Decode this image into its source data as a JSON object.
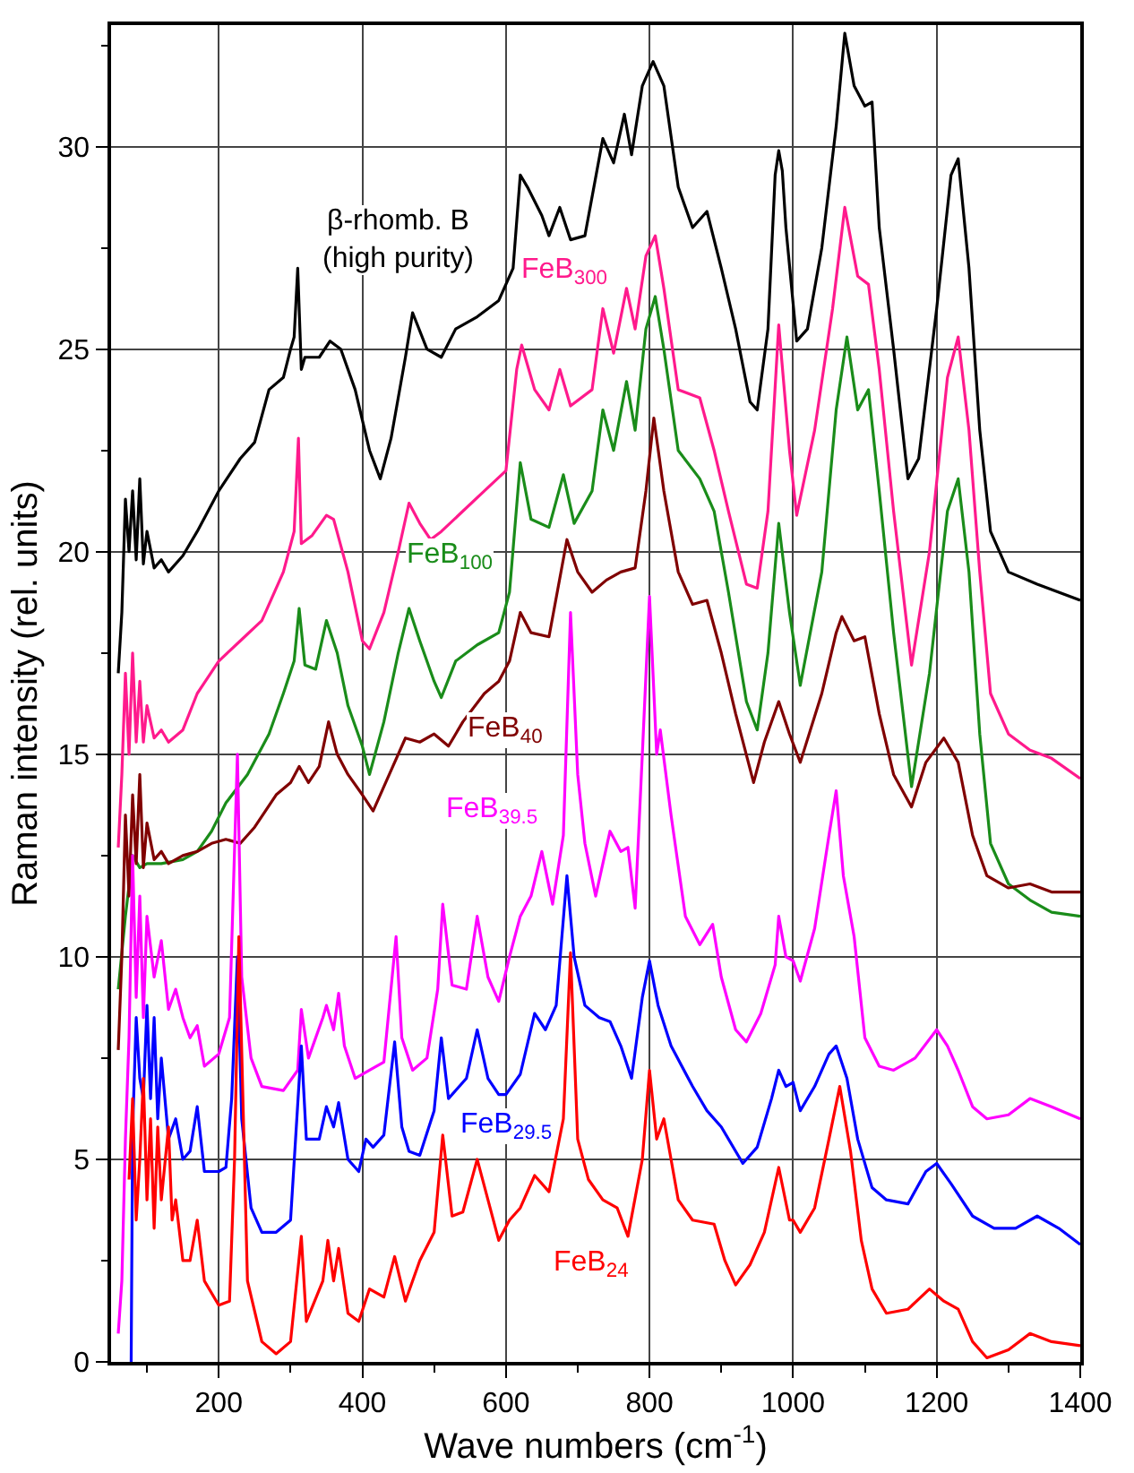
{
  "chart_data": {
    "type": "line",
    "xlabel": "Wave numbers (cm$^{-1}$)",
    "ylabel": "Raman intensity (rel. units)",
    "xlim": [
      50,
      1400
    ],
    "ylim": [
      0,
      33
    ],
    "xticks": [
      200,
      400,
      600,
      800,
      1000,
      1200,
      1400
    ],
    "yticks": [
      0,
      5,
      10,
      15,
      20,
      25,
      30
    ],
    "grid": true,
    "legend": false,
    "marker": "none",
    "line_style": "solid",
    "series": [
      {
        "name": "β-rhomb. B\n(high purity)",
        "color": "#000000",
        "x": [
          60,
          65,
          70,
          75,
          80,
          85,
          90,
          95,
          100,
          110,
          120,
          130,
          150,
          170,
          200,
          230,
          250,
          270,
          290,
          300,
          305,
          310,
          315,
          320,
          340,
          355,
          370,
          390,
          410,
          425,
          440,
          460,
          470,
          490,
          510,
          530,
          560,
          590,
          610,
          620,
          630,
          650,
          660,
          675,
          690,
          710,
          735,
          750,
          765,
          775,
          790,
          805,
          820,
          840,
          860,
          880,
          900,
          920,
          940,
          950,
          965,
          975,
          980,
          985,
          990,
          1005,
          1020,
          1040,
          1060,
          1072,
          1085,
          1100,
          1110,
          1120,
          1140,
          1160,
          1175,
          1200,
          1220,
          1230,
          1245,
          1260,
          1275,
          1300,
          1340,
          1400
        ],
        "values": [
          17,
          18.5,
          21.3,
          20,
          21.5,
          19.8,
          21.8,
          19.7,
          20.5,
          19.6,
          19.8,
          19.5,
          19.9,
          20.5,
          21.5,
          22.3,
          22.7,
          24,
          24.3,
          25,
          25.3,
          27,
          24.5,
          24.8,
          24.8,
          25.2,
          25,
          24,
          22.5,
          21.8,
          22.8,
          24.8,
          25.9,
          25,
          24.8,
          25.5,
          25.8,
          26.2,
          27,
          29.3,
          29,
          28.3,
          27.8,
          28.5,
          27.7,
          27.8,
          30.2,
          29.6,
          30.8,
          29.8,
          31.5,
          32.1,
          31.5,
          29,
          28,
          28.4,
          27,
          25.5,
          23.7,
          23.5,
          25.5,
          29.3,
          29.9,
          29.4,
          28,
          25.2,
          25.5,
          27.5,
          30.5,
          32.8,
          31.5,
          31,
          31.1,
          28,
          25,
          21.8,
          22.3,
          26,
          29.3,
          29.7,
          27,
          23,
          20.5,
          19.5,
          19.2,
          18.8
        ]
      },
      {
        "name": "FeB$_{300}$",
        "color": "#ff1a8c",
        "x": [
          60,
          65,
          70,
          75,
          80,
          85,
          90,
          95,
          100,
          110,
          120,
          130,
          150,
          170,
          200,
          230,
          260,
          290,
          305,
          311,
          315,
          330,
          350,
          360,
          380,
          400,
          410,
          430,
          450,
          465,
          480,
          495,
          510,
          540,
          570,
          600,
          615,
          622,
          640,
          660,
          675,
          690,
          720,
          735,
          750,
          768,
          780,
          795,
          808,
          820,
          840,
          870,
          890,
          910,
          935,
          950,
          965,
          980,
          995,
          1005,
          1030,
          1055,
          1072,
          1090,
          1105,
          1120,
          1140,
          1165,
          1190,
          1215,
          1230,
          1245,
          1260,
          1275,
          1300,
          1330,
          1360,
          1400
        ],
        "values": [
          12.7,
          14.5,
          17,
          15,
          17.5,
          15.3,
          16.8,
          15.3,
          16.2,
          15.4,
          15.6,
          15.3,
          15.6,
          16.5,
          17.3,
          17.8,
          18.3,
          19.5,
          20.5,
          22.8,
          20.2,
          20.4,
          20.9,
          20.8,
          19.5,
          17.8,
          17.6,
          18.5,
          20,
          21.2,
          20.7,
          20.3,
          20.5,
          21,
          21.5,
          22,
          24.5,
          25.1,
          24,
          23.5,
          24.5,
          23.6,
          24,
          26,
          24.9,
          26.5,
          25.5,
          27.3,
          27.8,
          26.5,
          24,
          23.8,
          22.5,
          21,
          19.2,
          19.1,
          21,
          25.6,
          22.5,
          20.9,
          23,
          26,
          28.5,
          26.8,
          26.6,
          24.5,
          21,
          17.2,
          20,
          24.3,
          25.3,
          23,
          19.5,
          16.5,
          15.5,
          15.1,
          14.9,
          14.4
        ]
      },
      {
        "name": "FeB$_{100}$",
        "color": "#1a8c1a",
        "x": [
          60,
          70,
          80,
          90,
          100,
          120,
          150,
          170,
          190,
          210,
          240,
          270,
          290,
          305,
          312,
          320,
          335,
          350,
          365,
          380,
          400,
          410,
          430,
          450,
          465,
          480,
          500,
          510,
          530,
          560,
          590,
          605,
          620,
          635,
          660,
          680,
          695,
          720,
          735,
          750,
          768,
          780,
          795,
          808,
          820,
          840,
          870,
          890,
          910,
          935,
          950,
          965,
          980,
          995,
          1010,
          1040,
          1060,
          1075,
          1090,
          1105,
          1120,
          1140,
          1165,
          1190,
          1215,
          1230,
          1245,
          1260,
          1275,
          1300,
          1330,
          1360,
          1400
        ],
        "values": [
          9.2,
          11,
          12.5,
          12.2,
          12.3,
          12.3,
          12.4,
          12.6,
          13.1,
          13.8,
          14.5,
          15.5,
          16.5,
          17.3,
          18.6,
          17.2,
          17.1,
          18.3,
          17.5,
          16.2,
          15.2,
          14.5,
          15.8,
          17.5,
          18.6,
          17.8,
          16.8,
          16.4,
          17.3,
          17.7,
          18,
          19,
          22.2,
          20.8,
          20.6,
          21.9,
          20.7,
          21.5,
          23.5,
          22.5,
          24.2,
          23,
          25.5,
          26.3,
          25,
          22.5,
          21.8,
          21,
          19,
          16.3,
          15.6,
          17.5,
          20.7,
          18.5,
          16.7,
          19.5,
          23.5,
          25.3,
          23.5,
          24,
          21.5,
          18,
          14.2,
          17,
          21,
          21.8,
          19.5,
          15.5,
          12.8,
          11.8,
          11.4,
          11.1,
          11
        ]
      },
      {
        "name": "FeB$_{40}$",
        "color": "#800000",
        "x": [
          60,
          65,
          70,
          75,
          80,
          85,
          90,
          95,
          100,
          110,
          120,
          130,
          150,
          170,
          190,
          210,
          230,
          250,
          280,
          300,
          312,
          325,
          340,
          353,
          365,
          380,
          400,
          415,
          440,
          460,
          480,
          500,
          520,
          540,
          570,
          590,
          605,
          620,
          635,
          660,
          685,
          700,
          720,
          740,
          760,
          780,
          795,
          806,
          820,
          840,
          860,
          880,
          900,
          920,
          945,
          960,
          980,
          995,
          1010,
          1040,
          1060,
          1068,
          1085,
          1100,
          1120,
          1140,
          1165,
          1185,
          1210,
          1230,
          1250,
          1270,
          1300,
          1330,
          1360,
          1400
        ],
        "values": [
          7.7,
          10,
          13.5,
          11.5,
          14,
          12.3,
          14.5,
          12.2,
          13.3,
          12.4,
          12.6,
          12.3,
          12.5,
          12.6,
          12.8,
          12.9,
          12.8,
          13.2,
          14,
          14.3,
          14.7,
          14.3,
          14.7,
          15.8,
          15,
          14.5,
          14,
          13.6,
          14.6,
          15.4,
          15.3,
          15.5,
          15.2,
          15.8,
          16.5,
          16.8,
          17.3,
          18.5,
          18,
          17.9,
          20.3,
          19.5,
          19,
          19.3,
          19.5,
          19.6,
          21.5,
          23.3,
          21.5,
          19.5,
          18.7,
          18.8,
          17.5,
          16,
          14.3,
          15.3,
          16.3,
          15.5,
          14.8,
          16.5,
          18,
          18.4,
          17.8,
          17.9,
          16,
          14.5,
          13.7,
          14.8,
          15.4,
          14.8,
          13,
          12,
          11.7,
          11.8,
          11.6,
          11.6
        ]
      },
      {
        "name": "FeB$_{39.5}$",
        "color": "#ff00ff",
        "x": [
          60,
          65,
          70,
          75,
          80,
          85,
          90,
          95,
          100,
          110,
          120,
          130,
          140,
          150,
          160,
          170,
          180,
          200,
          215,
          226,
          232,
          245,
          260,
          290,
          310,
          315,
          325,
          345,
          350,
          360,
          367,
          375,
          390,
          410,
          430,
          447,
          455,
          470,
          490,
          505,
          512,
          525,
          545,
          560,
          575,
          590,
          605,
          620,
          635,
          650,
          665,
          680,
          690,
          700,
          710,
          725,
          745,
          760,
          770,
          780,
          790,
          800,
          810,
          815,
          830,
          850,
          870,
          888,
          900,
          920,
          935,
          955,
          975,
          980,
          990,
          1000,
          1010,
          1030,
          1050,
          1060,
          1070,
          1085,
          1100,
          1120,
          1140,
          1170,
          1200,
          1215,
          1230,
          1250,
          1270,
          1300,
          1330,
          1360,
          1400
        ],
        "values": [
          0.7,
          2,
          5.5,
          8,
          12.5,
          9,
          11.5,
          8.5,
          11,
          9.5,
          10.4,
          8.7,
          9.2,
          8.5,
          8,
          8.3,
          7.3,
          7.6,
          8.5,
          15,
          9.5,
          7.5,
          6.8,
          6.7,
          7.2,
          8.7,
          7.5,
          8.5,
          8.8,
          8.2,
          9.1,
          7.8,
          7,
          7.2,
          7.4,
          10.5,
          8,
          7.2,
          7.5,
          9.2,
          11.3,
          9.3,
          9.2,
          11,
          9.5,
          8.9,
          10,
          11,
          11.5,
          12.6,
          11.3,
          13,
          18.5,
          14.5,
          12.8,
          11.5,
          13.1,
          12.6,
          12.7,
          11.2,
          15,
          18.9,
          15,
          15.6,
          13.5,
          11,
          10.3,
          10.8,
          9.5,
          8.2,
          7.9,
          8.6,
          9.8,
          11,
          10,
          9.9,
          9.4,
          10.7,
          13,
          14.1,
          12,
          10.5,
          8,
          7.3,
          7.2,
          7.5,
          8.2,
          7.8,
          7.2,
          6.3,
          6,
          6.1,
          6.5,
          6.3,
          6
        ]
      },
      {
        "name": "FeB$_{29.5}$",
        "color": "#0000ff",
        "x": [
          78,
          80,
          85,
          90,
          95,
          100,
          105,
          110,
          115,
          120,
          130,
          140,
          150,
          160,
          170,
          180,
          200,
          210,
          218,
          226,
          232,
          245,
          260,
          280,
          300,
          315,
          322,
          340,
          350,
          360,
          367,
          380,
          395,
          405,
          415,
          430,
          445,
          455,
          465,
          480,
          500,
          510,
          520,
          545,
          560,
          575,
          590,
          600,
          620,
          640,
          655,
          670,
          685,
          695,
          710,
          730,
          745,
          760,
          775,
          790,
          800,
          812,
          830,
          860,
          880,
          900,
          930,
          950,
          970,
          980,
          990,
          1000,
          1010,
          1030,
          1050,
          1060,
          1075,
          1090,
          1110,
          1130,
          1160,
          1185,
          1200,
          1220,
          1250,
          1280,
          1310,
          1340,
          1370,
          1400
        ],
        "values": [
          0,
          5.7,
          8.5,
          7,
          6.5,
          8.8,
          6.5,
          8.5,
          6,
          7.5,
          5.5,
          6,
          5,
          5.2,
          6.3,
          4.7,
          4.7,
          4.8,
          6.5,
          10,
          6,
          3.8,
          3.2,
          3.2,
          3.5,
          7.8,
          5.5,
          5.5,
          6.3,
          5.8,
          6.4,
          5,
          4.7,
          5.5,
          5.3,
          5.6,
          7.9,
          5.8,
          5.2,
          5.1,
          6.2,
          8,
          6.5,
          7,
          8.2,
          7,
          6.6,
          6.6,
          7.1,
          8.6,
          8.2,
          8.8,
          12,
          10,
          8.8,
          8.5,
          8.4,
          7.8,
          7,
          9,
          9.9,
          8.8,
          7.8,
          6.8,
          6.2,
          5.8,
          4.9,
          5.3,
          6.5,
          7.2,
          6.8,
          6.9,
          6.2,
          6.8,
          7.6,
          7.8,
          7,
          5.5,
          4.3,
          4,
          3.9,
          4.7,
          4.9,
          4.4,
          3.6,
          3.3,
          3.3,
          3.6,
          3.3,
          2.9
        ]
      },
      {
        "name": "FeB$_{24}$",
        "color": "#ff0000",
        "x": [
          75,
          80,
          85,
          90,
          95,
          100,
          105,
          110,
          115,
          120,
          130,
          135,
          140,
          150,
          160,
          170,
          180,
          200,
          215,
          222,
          228,
          240,
          260,
          280,
          300,
          315,
          322,
          345,
          352,
          360,
          367,
          380,
          395,
          410,
          430,
          445,
          460,
          480,
          500,
          512,
          525,
          540,
          560,
          575,
          590,
          605,
          620,
          640,
          660,
          680,
          690,
          700,
          715,
          735,
          755,
          770,
          790,
          800,
          810,
          820,
          840,
          860,
          890,
          905,
          920,
          940,
          960,
          980,
          995,
          1000,
          1010,
          1030,
          1050,
          1065,
          1080,
          1095,
          1110,
          1130,
          1160,
          1190,
          1210,
          1230,
          1250,
          1270,
          1300,
          1330,
          1360,
          1400
        ],
        "values": [
          4.5,
          6.5,
          3.5,
          5,
          7,
          4,
          6,
          3.3,
          5.8,
          4,
          5.8,
          3.5,
          4,
          2.5,
          2.5,
          3.5,
          2,
          1.4,
          1.5,
          5,
          10.5,
          2,
          0.5,
          0.2,
          0.5,
          3.1,
          1,
          2,
          3,
          2,
          2.8,
          1.2,
          1,
          1.8,
          1.6,
          2.6,
          1.5,
          2.5,
          3.2,
          5.6,
          3.6,
          3.7,
          5,
          4,
          3,
          3.5,
          3.8,
          4.6,
          4.2,
          6,
          10.1,
          5.5,
          4.5,
          4,
          3.8,
          3.1,
          5,
          7.2,
          5.5,
          6,
          4,
          3.5,
          3.4,
          2.5,
          1.9,
          2.4,
          3.2,
          4.8,
          3.5,
          3.5,
          3.2,
          3.8,
          5.5,
          6.8,
          5.2,
          3,
          1.8,
          1.2,
          1.3,
          1.8,
          1.5,
          1.3,
          0.5,
          0.1,
          0.3,
          0.7,
          0.5,
          0.4
        ]
      }
    ]
  }
}
